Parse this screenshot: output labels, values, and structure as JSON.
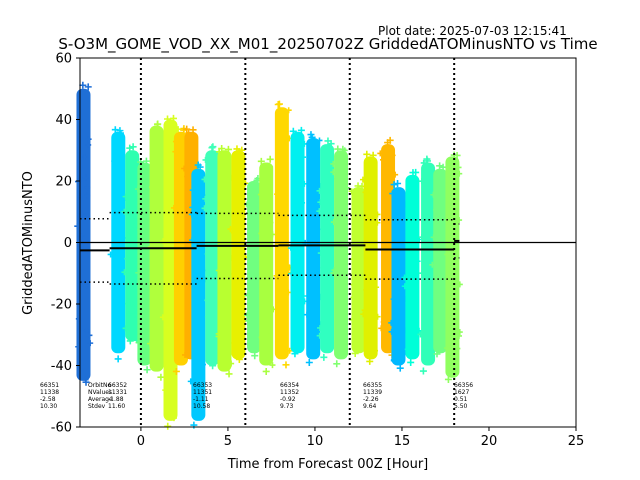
{
  "plot_date": "Plot date: 2025-07-03 12:15:41",
  "chart_data": {
    "type": "scatter",
    "title": "S-O3M_GOME_VOD_XX_M01_20250702Z GriddedATOMinusNTO vs Time",
    "xlabel": "Time from Forecast 00Z [Hour]",
    "ylabel": "GriddedATOMinusNTO",
    "xlim": [
      -3.5,
      25
    ],
    "ylim": [
      -60,
      60
    ],
    "xticks": [
      0,
      5,
      10,
      15,
      20,
      25
    ],
    "yticks": [
      -60,
      -40,
      -20,
      0,
      20,
      40,
      60
    ],
    "grid": false,
    "vlines": [
      0,
      6,
      12,
      18
    ],
    "zero_line": 0,
    "stats_labels": [
      "OrbitNo",
      "NValues",
      "Average",
      "Stdev"
    ],
    "orbits": [
      {
        "orbit": "66351",
        "n": "11338",
        "avg": "-2.58",
        "stdev": "10.30",
        "avg_val": -2.58,
        "sd_val": 10.3,
        "t0": -3.5,
        "t1": -1.8
      },
      {
        "orbit": "66352",
        "n": "11331",
        "avg": "-1.88",
        "stdev": "11.60",
        "avg_val": -1.88,
        "sd_val": 11.6,
        "t0": -1.8,
        "t1": 3.2
      },
      {
        "orbit": "66353",
        "n": "11351",
        "avg": "-1.11",
        "stdev": "10.58",
        "avg_val": -1.11,
        "sd_val": 10.58,
        "t0": 3.2,
        "t1": 7.9
      },
      {
        "orbit": "66354",
        "n": "11352",
        "avg": "-0.92",
        "stdev": "9.73",
        "avg_val": -0.92,
        "sd_val": 9.73,
        "t0": 7.9,
        "t1": 12.9
      },
      {
        "orbit": "66355",
        "n": "11339",
        "avg": "-2.26",
        "stdev": "9.64",
        "avg_val": -2.26,
        "sd_val": 9.64,
        "t0": 12.9,
        "t1": 18.0
      },
      {
        "orbit": "66356",
        "n": "1627",
        "avg": "0.51",
        "stdev": "5.50",
        "avg_val": 0.51,
        "sd_val": 5.5,
        "t0": 18.0,
        "t1": 18.3
      }
    ],
    "swaths": [
      {
        "t": -3.3,
        "ymin": -45,
        "ymax": 50,
        "color": "#1f6fd6"
      },
      {
        "t": -1.3,
        "ymin": -36,
        "ymax": 36,
        "color": "#00d8ff"
      },
      {
        "t": -0.5,
        "ymin": -32,
        "ymax": 30,
        "color": "#2fffb0"
      },
      {
        "t": 0.2,
        "ymin": -40,
        "ymax": 26,
        "color": "#66ff80"
      },
      {
        "t": 0.9,
        "ymin": -42,
        "ymax": 38,
        "color": "#b0ff3c"
      },
      {
        "t": 1.7,
        "ymin": -58,
        "ymax": 40,
        "color": "#d8ff20"
      },
      {
        "t": 2.3,
        "ymin": -40,
        "ymax": 36,
        "color": "#ffd000"
      },
      {
        "t": 2.9,
        "ymin": -38,
        "ymax": 36,
        "color": "#ffb000"
      },
      {
        "t": 3.3,
        "ymin": -58,
        "ymax": 24,
        "color": "#00c8ff"
      },
      {
        "t": 4.1,
        "ymin": -40,
        "ymax": 30,
        "color": "#40ffb8"
      },
      {
        "t": 4.8,
        "ymin": -42,
        "ymax": 30,
        "color": "#b8ff30"
      },
      {
        "t": 5.6,
        "ymin": -38,
        "ymax": 30,
        "color": "#e8f000"
      },
      {
        "t": 6.5,
        "ymin": -36,
        "ymax": 20,
        "color": "#70ff80"
      },
      {
        "t": 7.2,
        "ymin": -40,
        "ymax": 26,
        "color": "#a8ff40"
      },
      {
        "t": 8.1,
        "ymin": -38,
        "ymax": 44,
        "color": "#ffd800"
      },
      {
        "t": 9.0,
        "ymin": -36,
        "ymax": 36,
        "color": "#00f0f0"
      },
      {
        "t": 9.9,
        "ymin": -38,
        "ymax": 34,
        "color": "#00c0ff"
      },
      {
        "t": 10.7,
        "ymin": -36,
        "ymax": 32,
        "color": "#30ffc0"
      },
      {
        "t": 11.5,
        "ymin": -38,
        "ymax": 30,
        "color": "#80ff70"
      },
      {
        "t": 12.5,
        "ymin": -36,
        "ymax": 18,
        "color": "#c0ff30"
      },
      {
        "t": 13.2,
        "ymin": -38,
        "ymax": 28,
        "color": "#e0f000"
      },
      {
        "t": 14.2,
        "ymin": -36,
        "ymax": 32,
        "color": "#ffb800"
      },
      {
        "t": 14.8,
        "ymin": -40,
        "ymax": 18,
        "color": "#00b8ff"
      },
      {
        "t": 15.6,
        "ymin": -38,
        "ymax": 22,
        "color": "#00ffd8"
      },
      {
        "t": 16.5,
        "ymin": -40,
        "ymax": 26,
        "color": "#30ffb8"
      },
      {
        "t": 17.2,
        "ymin": -36,
        "ymax": 24,
        "color": "#70ff80"
      },
      {
        "t": 17.9,
        "ymin": -44,
        "ymax": 28,
        "color": "#90ff60"
      }
    ]
  }
}
